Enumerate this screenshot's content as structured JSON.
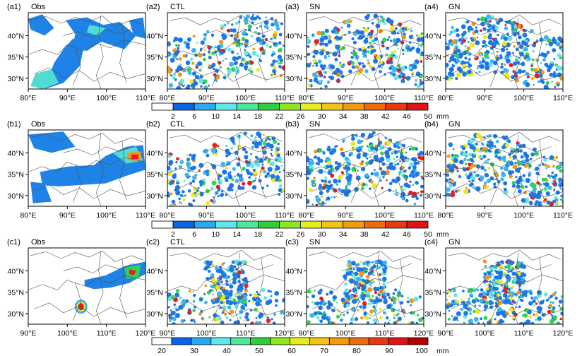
{
  "rows": [
    {
      "id": "a",
      "lon_ticks": [
        "80°E",
        "90°E",
        "100°E",
        "110°E"
      ],
      "lat_ticks": [
        "40°N",
        "35°N",
        "30°N"
      ],
      "panels": [
        {
          "label": "(a1)",
          "name": "Obs"
        },
        {
          "label": "(a2)",
          "name": "CTL"
        },
        {
          "label": "(a3)",
          "name": "SN"
        },
        {
          "label": "(a4)",
          "name": "GN"
        }
      ]
    },
    {
      "id": "b",
      "lon_ticks": [
        "80°E",
        "90°E",
        "100°E",
        "110°E"
      ],
      "lat_ticks": [
        "40°N",
        "35°N",
        "30°N"
      ],
      "panels": [
        {
          "label": "(b1)",
          "name": "Obs"
        },
        {
          "label": "(b2)",
          "name": "CTL"
        },
        {
          "label": "(b3)",
          "name": "SN"
        },
        {
          "label": "(b4)",
          "name": "GN"
        }
      ]
    },
    {
      "id": "c",
      "lon_ticks": [
        "90°E",
        "100°E",
        "110°E",
        "120°E"
      ],
      "lat_ticks": [
        "40°N",
        "35°N",
        "30°N"
      ],
      "panels": [
        {
          "label": "(c1)",
          "name": "Obs"
        },
        {
          "label": "(c2)",
          "name": "CTL"
        },
        {
          "label": "(c3)",
          "name": "SN"
        },
        {
          "label": "(c4)",
          "name": "GN"
        }
      ]
    }
  ],
  "colorbars": [
    {
      "labels": [
        "2",
        "6",
        "10",
        "14",
        "18",
        "22",
        "26",
        "30",
        "34",
        "38",
        "42",
        "46",
        "50"
      ],
      "colors": [
        "#ffffff",
        "#0a64e6",
        "#2aa8f0",
        "#5ee8ee",
        "#4de89c",
        "#2ecf3a",
        "#8fe81e",
        "#e6ee1c",
        "#f2c414",
        "#f29a10",
        "#ec6a10",
        "#e83a12",
        "#e01414"
      ],
      "unit": "mm"
    },
    {
      "labels": [
        "2",
        "6",
        "10",
        "14",
        "18",
        "22",
        "26",
        "30",
        "34",
        "38",
        "42",
        "46",
        "50"
      ],
      "colors": [
        "#ffffff",
        "#0a64e6",
        "#2aa8f0",
        "#5ee8ee",
        "#4de89c",
        "#2ecf3a",
        "#8fe81e",
        "#e6ee1c",
        "#f2c414",
        "#f29a10",
        "#ec6a10",
        "#e83a12",
        "#e01414"
      ],
      "unit": "mm"
    },
    {
      "labels": [
        "20",
        "30",
        "40",
        "50",
        "60",
        "70",
        "80",
        "90",
        "100"
      ],
      "colors": [
        "#ffffff",
        "#0a64e6",
        "#2aa8f0",
        "#5ee8ee",
        "#4de89c",
        "#2ecf3a",
        "#8fe81e",
        "#e6ee1c",
        "#f2c414",
        "#f29a10",
        "#ec6a10",
        "#e83a12",
        "#e01414",
        "#b40000"
      ],
      "unit": "mm"
    }
  ],
  "palette": {
    "blue": "#1c78e8",
    "sky": "#3cb4f0",
    "cyan": "#64e6e6",
    "green": "#32d24a",
    "yellow": "#f0e61e",
    "orange": "#f59614",
    "red": "#e61e1e",
    "obs_blue": "#1e82e6",
    "obs_cyan": "#50dcd2",
    "border": "#505050"
  }
}
